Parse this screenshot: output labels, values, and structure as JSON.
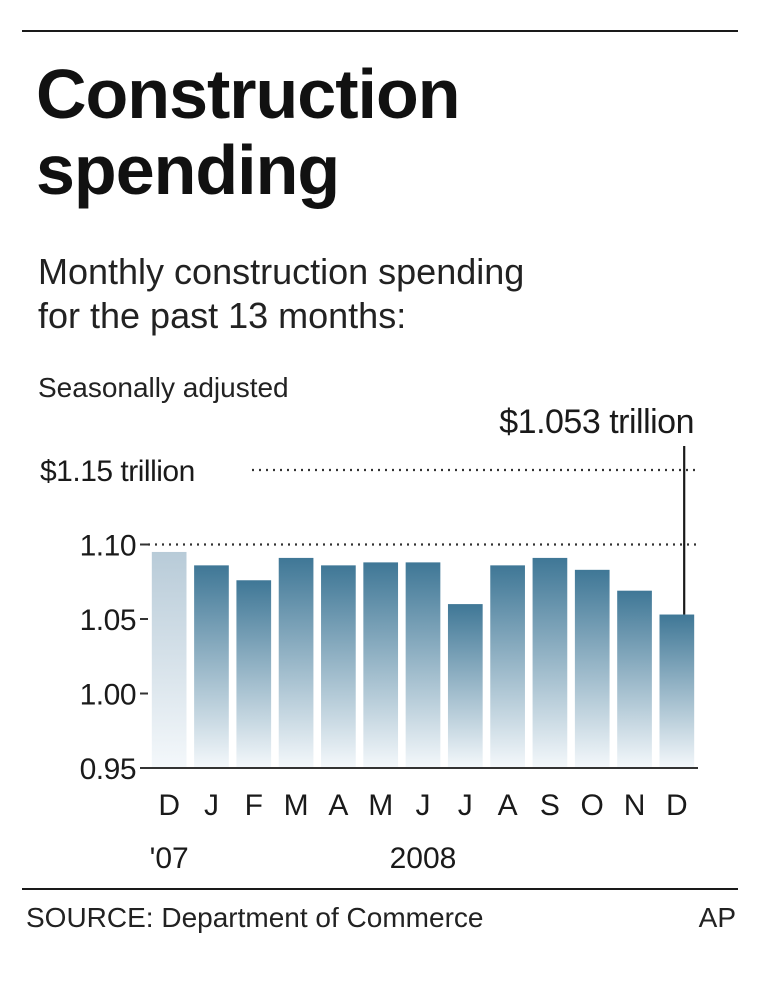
{
  "header": {
    "title_line1": "Construction",
    "title_line2": "spending",
    "subtitle_line1": "Monthly construction spending",
    "subtitle_line2": "for the past 13 months:",
    "note": "Seasonally adjusted"
  },
  "footer": {
    "source": "SOURCE: Department of Commerce",
    "credit": "AP"
  },
  "chart_data": {
    "type": "bar",
    "categories": [
      "D",
      "J",
      "F",
      "M",
      "A",
      "M",
      "J",
      "J",
      "A",
      "S",
      "O",
      "N",
      "D"
    ],
    "values": [
      1.095,
      1.086,
      1.076,
      1.091,
      1.086,
      1.088,
      1.088,
      1.06,
      1.086,
      1.091,
      1.083,
      1.069,
      1.053
    ],
    "ylim": [
      0.95,
      1.15
    ],
    "y_ticks": [
      {
        "value": 0.95,
        "label": "0.95"
      },
      {
        "value": 1.0,
        "label": "1.00"
      },
      {
        "value": 1.05,
        "label": "1.05"
      },
      {
        "value": 1.1,
        "label": "1.10"
      },
      {
        "value": 1.15,
        "label": "$1.15 trillion"
      }
    ],
    "dotted_gridlines": [
      1.1,
      1.15
    ],
    "year_labels": [
      {
        "label": "'07",
        "category_index": 0
      },
      {
        "label": "2008",
        "category_index": 6
      }
    ],
    "annotation": {
      "text": "$1.053 trillion",
      "category_index": 12
    },
    "highlight": {
      "category_index": 0,
      "note": "first bar lighter shade"
    },
    "colors": {
      "bar_top": "#3f7796",
      "bar_bottom": "#f4f8fb",
      "first_bar_top": "#b8cbd8",
      "axis": "#333333",
      "grid": "#333333"
    },
    "grid": true
  }
}
